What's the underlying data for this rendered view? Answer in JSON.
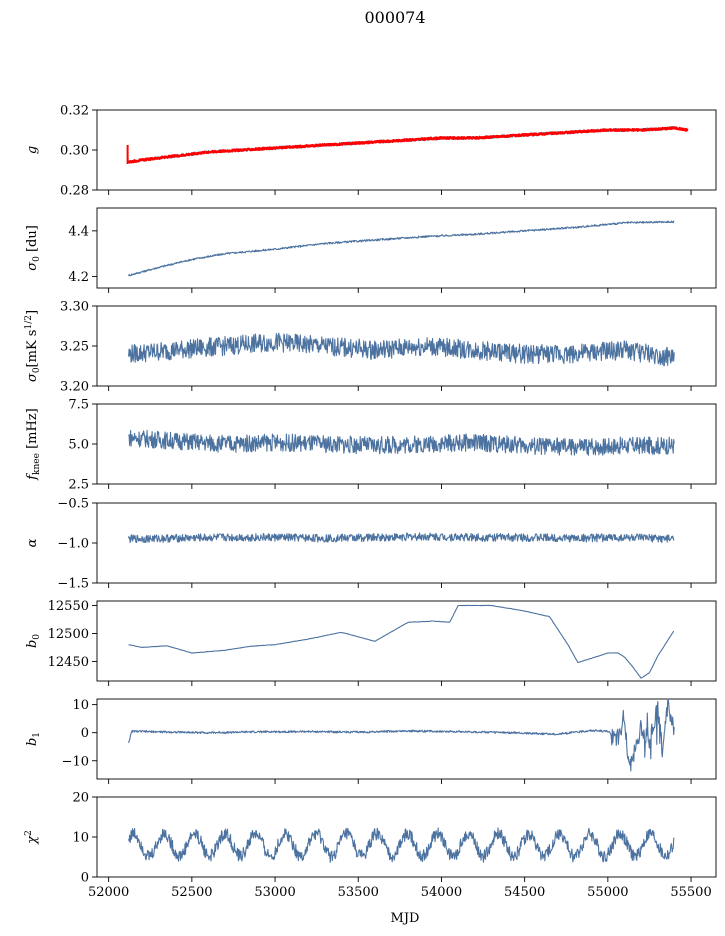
{
  "figure": {
    "title": "000074",
    "xlabel": "MJD",
    "xticks": [
      "52000",
      "52500",
      "53000",
      "53500",
      "54000",
      "54500",
      "55000",
      "55500"
    ],
    "series_color": "#4c72a0",
    "fit_color": "#ff0000"
  },
  "chart_data": [
    {
      "type": "line",
      "id": "g",
      "ylabel": "g",
      "xlim": [
        51930,
        55650
      ],
      "ylim": [
        0.28,
        0.32
      ],
      "yticks": [
        "0.28",
        "0.30",
        "0.32"
      ],
      "series": [
        {
          "x": [
            52120,
            52200,
            52400,
            52600,
            52800,
            53000,
            53200,
            53400,
            53600,
            53800,
            54000,
            54200,
            54400,
            54600,
            54800,
            55000,
            55200,
            55400
          ],
          "y": [
            0.294,
            0.295,
            0.297,
            0.299,
            0.3,
            0.301,
            0.302,
            0.303,
            0.304,
            0.305,
            0.306,
            0.306,
            0.307,
            0.308,
            0.309,
            0.31,
            0.31,
            0.311
          ]
        },
        {
          "x": [
            52120,
            52200,
            52400,
            52600,
            52800,
            53000,
            53200,
            53400,
            53600,
            53800,
            54000,
            54200,
            54400,
            54600,
            54800,
            55000,
            55200,
            55400,
            55480
          ],
          "y": [
            0.294,
            0.295,
            0.297,
            0.299,
            0.3,
            0.301,
            0.302,
            0.303,
            0.304,
            0.305,
            0.306,
            0.306,
            0.307,
            0.308,
            0.309,
            0.31,
            0.31,
            0.311,
            0.31
          ]
        }
      ]
    },
    {
      "type": "line",
      "id": "sigma0-du",
      "ylabel": "σ0 [du]",
      "xlim": [
        51930,
        55650
      ],
      "ylim": [
        4.15,
        4.5
      ],
      "yticks": [
        "4.2",
        "4.4"
      ],
      "series": [
        {
          "x": [
            52120,
            52300,
            52500,
            52700,
            53000,
            53300,
            53600,
            53900,
            54200,
            54500,
            54800,
            55100,
            55400
          ],
          "y": [
            4.205,
            4.24,
            4.275,
            4.3,
            4.32,
            4.345,
            4.36,
            4.375,
            4.385,
            4.4,
            4.415,
            4.435,
            4.44
          ]
        }
      ]
    },
    {
      "type": "line",
      "id": "sigma0-mks",
      "ylabel": "σ0[mK s1/2]",
      "xlim": [
        51930,
        55650
      ],
      "ylim": [
        3.2,
        3.3
      ],
      "yticks": [
        "3.20",
        "3.25",
        "3.30"
      ],
      "series": [
        {
          "x": [
            52120,
            52400,
            52700,
            53000,
            53300,
            53600,
            53900,
            54200,
            54500,
            54800,
            55100,
            55400
          ],
          "y": [
            3.24,
            3.245,
            3.25,
            3.255,
            3.25,
            3.245,
            3.25,
            3.245,
            3.24,
            3.24,
            3.245,
            3.235
          ]
        }
      ]
    },
    {
      "type": "line",
      "id": "fknee",
      "ylabel": "fknee [mHz]",
      "xlim": [
        51930,
        55650
      ],
      "ylim": [
        2.5,
        7.5
      ],
      "yticks": [
        "2.5",
        "5.0",
        "7.5"
      ],
      "series": [
        {
          "x": [
            52120,
            52400,
            52700,
            53000,
            53300,
            53600,
            53900,
            54200,
            54500,
            54800,
            55100,
            55400
          ],
          "y": [
            5.4,
            5.2,
            5.0,
            5.1,
            5.0,
            4.9,
            5.0,
            5.1,
            4.9,
            4.8,
            4.9,
            4.9
          ]
        }
      ]
    },
    {
      "type": "line",
      "id": "alpha",
      "ylabel": "α",
      "xlim": [
        51930,
        55650
      ],
      "ylim": [
        -1.5,
        -0.5
      ],
      "yticks": [
        "−1.5",
        "−1.0",
        "−0.5"
      ],
      "series": [
        {
          "x": [
            52120,
            52400,
            52700,
            53000,
            53300,
            53600,
            53900,
            54200,
            54500,
            54800,
            55100,
            55400
          ],
          "y": [
            -0.95,
            -0.94,
            -0.93,
            -0.93,
            -0.94,
            -0.93,
            -0.92,
            -0.93,
            -0.93,
            -0.94,
            -0.93,
            -0.95
          ]
        }
      ]
    },
    {
      "type": "line",
      "id": "b0",
      "ylabel": "b0",
      "xlim": [
        51930,
        55650
      ],
      "ylim": [
        12415,
        12558
      ],
      "yticks": [
        "12450",
        "12500",
        "12550"
      ],
      "series": [
        {
          "x": [
            52120,
            52200,
            52350,
            52500,
            52700,
            52850,
            53000,
            53200,
            53400,
            53550,
            53600,
            53800,
            53950,
            54050,
            54100,
            54300,
            54500,
            54650,
            54760,
            54820,
            55000,
            55060,
            55100,
            55150,
            55200,
            55250,
            55300,
            55400
          ],
          "y": [
            12480,
            12475,
            12478,
            12465,
            12470,
            12477,
            12480,
            12490,
            12502,
            12490,
            12486,
            12520,
            12522,
            12520,
            12550,
            12550,
            12540,
            12530,
            12480,
            12448,
            12465,
            12465,
            12458,
            12440,
            12420,
            12430,
            12460,
            12506
          ]
        }
      ]
    },
    {
      "type": "line",
      "id": "b1",
      "ylabel": "b1",
      "xlim": [
        51930,
        55650
      ],
      "ylim": [
        -16.5,
        12
      ],
      "yticks": [
        "−10",
        "0",
        "10"
      ],
      "series": [
        {
          "x": [
            52120,
            52140,
            52300,
            52600,
            52900,
            53200,
            53500,
            53800,
            54100,
            54400,
            54700,
            54900,
            55000,
            55050,
            55100,
            55130,
            55200,
            55250,
            55300,
            55330,
            55360,
            55400
          ],
          "y": [
            -3.5,
            0.5,
            0.3,
            0.0,
            0.3,
            0.4,
            0.2,
            0.6,
            0.4,
            0.0,
            -0.5,
            0.8,
            0.5,
            -2.0,
            3.5,
            -13.5,
            2.0,
            -3.0,
            9.0,
            -8.0,
            10.0,
            0.2
          ]
        }
      ]
    },
    {
      "type": "line",
      "id": "chi2",
      "ylabel": "χ2",
      "xlim": [
        51930,
        55650
      ],
      "ylim": [
        0,
        20
      ],
      "yticks": [
        "0",
        "10",
        "20"
      ],
      "series": [
        {
          "x": [
            52120,
            52300,
            52500,
            52700,
            52900,
            53100,
            53300,
            53500,
            53700,
            53900,
            54100,
            54300,
            54500,
            54700,
            54900,
            55100,
            55300,
            55400
          ],
          "y": [
            6,
            11,
            7,
            10,
            5,
            10,
            6,
            11,
            5,
            10,
            6,
            12,
            5,
            10,
            5,
            11,
            6,
            9
          ]
        }
      ]
    }
  ]
}
